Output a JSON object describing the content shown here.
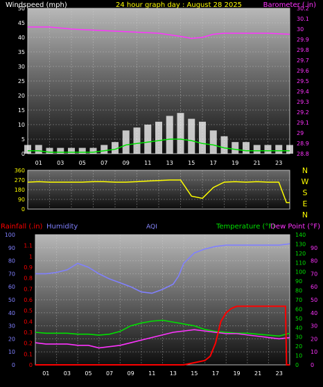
{
  "header": {
    "title": "24 hour graph day : August 28 2025",
    "left_label": "Windspeed (mph)",
    "right_label": "Barometer (.in)"
  },
  "colors": {
    "background": "#000000",
    "wind": "#ffffff",
    "wind_avg": "#00e000",
    "barometer": "#ff33ff",
    "direction": "#ffff00",
    "rain": "#ff0000",
    "humidity": "#8080ff",
    "temperature": "#00e000",
    "dewpoint": "#ff33ff",
    "aqi": "#8888ff"
  },
  "chart_data": [
    {
      "type": "line",
      "title": "24 hour graph day : August 28 2025",
      "ylabel": "Windspeed (mph)",
      "ylabel_right": "Barometer (.in)",
      "ylim": [
        0,
        50
      ],
      "ylim_right": [
        28.8,
        30.2
      ],
      "yticks": [
        "0",
        "5",
        "10",
        "15",
        "20",
        "25",
        "30",
        "35",
        "40",
        "45",
        "50"
      ],
      "yticks_right": [
        "28.8",
        "28.9",
        "29",
        "29.1",
        "29.2",
        "29.3",
        "29.4",
        "29.5",
        "29.6",
        "29.7",
        "29.8",
        "29.9",
        "30",
        "30.1",
        "30.2"
      ],
      "xticks": [
        "01",
        "03",
        "05",
        "07",
        "09",
        "11",
        "13",
        "15",
        "17",
        "19",
        "21",
        "23"
      ],
      "grid": true,
      "series": [
        {
          "axis": "left",
          "style": "bar",
          "x": [
            0,
            1,
            2,
            3,
            4,
            5,
            6,
            7,
            8,
            9,
            10,
            11,
            12,
            13,
            14,
            15,
            16,
            17,
            18,
            19,
            20,
            21,
            22,
            23,
            24
          ],
          "values": [
            3,
            3,
            2,
            2,
            2,
            2,
            2,
            3,
            4,
            8,
            9,
            10,
            11,
            13,
            14,
            12,
            11,
            8,
            6,
            4,
            4,
            3,
            3,
            3,
            3
          ]
        },
        {
          "axis": "left",
          "style": "line",
          "x": [
            0,
            1,
            2,
            3,
            4,
            5,
            6,
            7,
            8,
            9,
            10,
            11,
            12,
            13,
            14,
            15,
            16,
            17,
            18,
            19,
            20,
            21,
            22,
            23,
            24
          ],
          "values": [
            1,
            1,
            0.5,
            0.5,
            0.5,
            0.5,
            0.5,
            1,
            1.5,
            3,
            3.5,
            4,
            4.5,
            5,
            5,
            4.5,
            3.5,
            3,
            2,
            1.5,
            1,
            1,
            1,
            1,
            1
          ]
        },
        {
          "axis": "right",
          "style": "line",
          "x": [
            0,
            2,
            4,
            6,
            8,
            10,
            12,
            14,
            15,
            16,
            17,
            18,
            20,
            22,
            24
          ],
          "values": [
            30.02,
            30.02,
            30.0,
            29.99,
            29.98,
            29.97,
            29.96,
            29.93,
            29.91,
            29.92,
            29.95,
            29.96,
            29.96,
            29.96,
            29.95
          ]
        }
      ]
    },
    {
      "type": "line",
      "ylim": [
        0,
        360
      ],
      "yticks": [
        "0",
        "90",
        "180",
        "270",
        "360"
      ],
      "direction_labels": [
        "N",
        "W",
        "S",
        "E",
        "N"
      ],
      "grid": true,
      "series": [
        {
          "x": [
            0,
            1,
            2,
            3,
            4,
            5,
            6,
            7,
            8,
            9,
            10,
            11,
            12,
            13,
            14,
            15,
            16,
            17,
            18,
            19,
            20,
            21,
            22,
            23,
            23.7,
            24
          ],
          "values": [
            250,
            255,
            250,
            250,
            250,
            250,
            255,
            255,
            250,
            250,
            255,
            260,
            265,
            270,
            270,
            120,
            100,
            200,
            250,
            255,
            250,
            255,
            250,
            250,
            60,
            60
          ]
        }
      ]
    },
    {
      "type": "line",
      "labels": {
        "rain": "Rainfall (.in)",
        "humidity": "Humidity",
        "aqi": "AQI",
        "temperature": "Temperature (°F)",
        "dewpoint": "Dew Point (°F)"
      },
      "yticks_humidity": [
        "0",
        "10",
        "20",
        "30",
        "40",
        "50",
        "60",
        "70",
        "80",
        "90",
        "100"
      ],
      "yticks_rain": [
        "0",
        "0.1",
        "0.2",
        "0.3",
        "0.4",
        "0.5",
        "0.6",
        "0.7",
        "0.8",
        "0.9",
        "1",
        "1.1"
      ],
      "yticks_temperature": [
        "0",
        "10",
        "20",
        "30",
        "40",
        "50",
        "60",
        "70",
        "80",
        "90",
        "100",
        "110",
        "120",
        "130",
        "140"
      ],
      "yticks_dewpoint": [
        "0",
        "10",
        "20",
        "30",
        "40",
        "50",
        "60",
        "70",
        "80",
        "90"
      ],
      "xticks": [
        "01",
        "03",
        "05",
        "07",
        "09",
        "11",
        "13",
        "15",
        "17",
        "19",
        "21",
        "23"
      ],
      "grid": true,
      "series": [
        {
          "name": "Humidity",
          "axis": "humidity",
          "ylim": [
            0,
            100
          ],
          "x": [
            0,
            1,
            2,
            3,
            4,
            5,
            6,
            7,
            8,
            9,
            10,
            11,
            12,
            13,
            13.5,
            14,
            15,
            16,
            17,
            18,
            19,
            20,
            21,
            22,
            23,
            24
          ],
          "values": [
            70,
            70,
            71,
            73,
            78,
            75,
            70,
            66,
            63,
            60,
            56,
            55,
            58,
            62,
            68,
            78,
            86,
            89,
            91,
            92,
            92,
            92,
            92,
            92,
            92,
            93
          ]
        },
        {
          "name": "Temperature (°F)",
          "axis": "temperature",
          "ylim": [
            0,
            140
          ],
          "x": [
            0,
            1,
            2,
            3,
            4,
            5,
            6,
            7,
            8,
            9,
            10,
            11,
            12,
            13,
            14,
            15,
            16,
            17,
            18,
            19,
            20,
            21,
            22,
            23,
            24
          ],
          "values": [
            35,
            34,
            34,
            34,
            33,
            33,
            32,
            33,
            36,
            42,
            45,
            47,
            48,
            46,
            44,
            42,
            38,
            36,
            35,
            34,
            34,
            33,
            32,
            31,
            34
          ]
        },
        {
          "name": "Dew Point (°F)",
          "axis": "dewpoint",
          "ylim": [
            0,
            100
          ],
          "x": [
            0,
            1,
            2,
            3,
            4,
            5,
            6,
            7,
            8,
            9,
            10,
            11,
            12,
            13,
            14,
            15,
            16,
            17,
            18,
            19,
            20,
            21,
            22,
            23,
            24
          ],
          "values": [
            17,
            16,
            16,
            16,
            15,
            15,
            13,
            14,
            15,
            17,
            19,
            21,
            23,
            25,
            26,
            27,
            26,
            25,
            24,
            24,
            23,
            22,
            21,
            20,
            21
          ]
        },
        {
          "name": "Rainfall (.in)",
          "axis": "rain",
          "ylim": [
            0,
            1.2
          ],
          "x": [
            0,
            14,
            15,
            16,
            16.5,
            17,
            17.5,
            18,
            18.5,
            19,
            20,
            21,
            22,
            23,
            23.6,
            23.7,
            24
          ],
          "values": [
            0,
            0,
            0.02,
            0.04,
            0.08,
            0.2,
            0.4,
            0.48,
            0.52,
            0.54,
            0.54,
            0.54,
            0.54,
            0.54,
            0.54,
            0,
            0
          ]
        }
      ]
    }
  ]
}
